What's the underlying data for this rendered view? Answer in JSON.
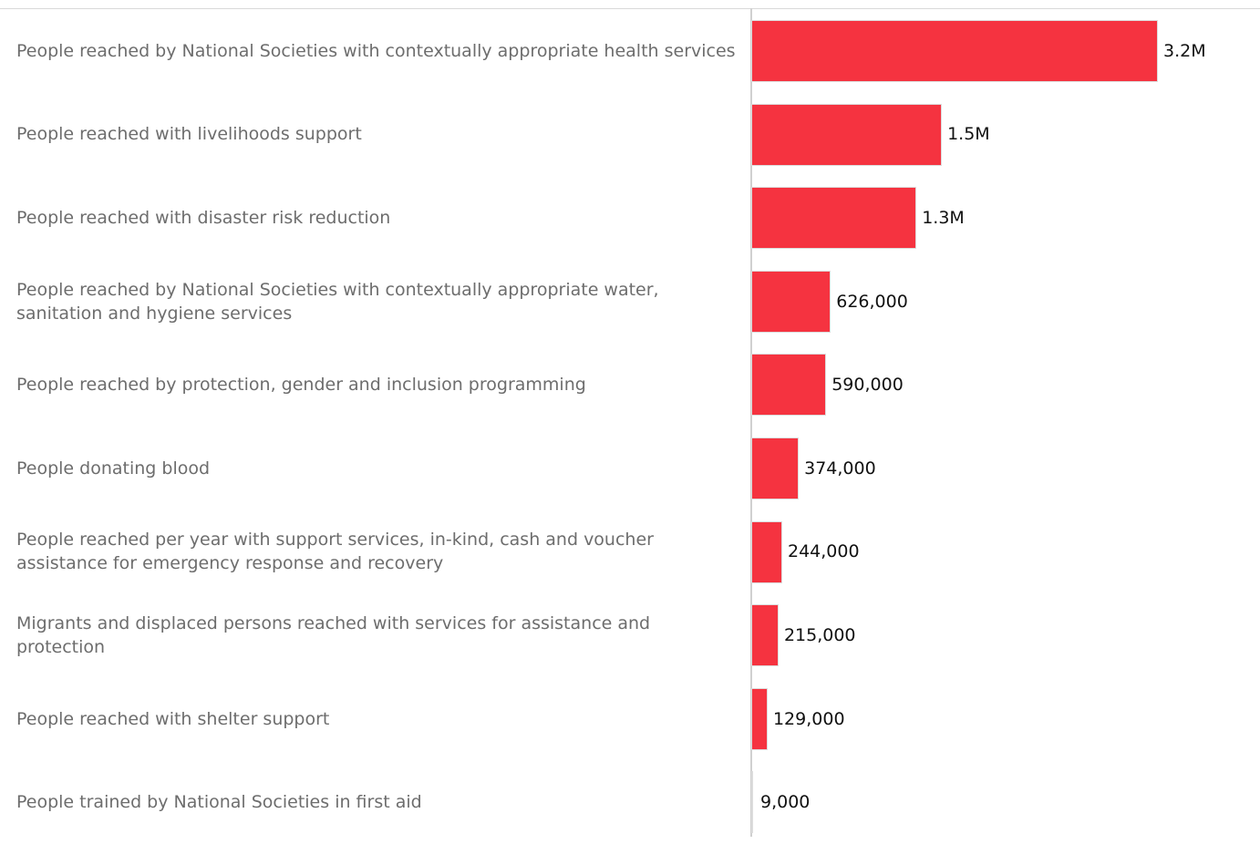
{
  "chart_data": {
    "type": "bar",
    "orientation": "horizontal",
    "categories": [
      "People reached by National Societies with contextually appropriate health services",
      "People reached with livelihoods support",
      "People reached with disaster risk reduction",
      "People reached by National Societies with contextually appropriate water, sanitation and hygiene services",
      "People reached by protection, gender and inclusion programming",
      "People donating blood",
      "People reached per year with support services, in-kind, cash and voucher assistance for emergency response and recovery",
      "Migrants and displaced persons reached with services for assistance and protection",
      "People reached with shelter support",
      "People trained by National Societies in first aid"
    ],
    "values": [
      3200000,
      1500000,
      1300000,
      626000,
      590000,
      374000,
      244000,
      215000,
      129000,
      9000
    ],
    "value_labels": [
      "3.2M",
      "1.5M",
      "1.3M",
      "626,000",
      "590,000",
      "374,000",
      "244,000",
      "215,000",
      "129,000",
      "9,000"
    ],
    "xlim": [
      0,
      3200000
    ],
    "grid": false,
    "legend": "none",
    "bar_color": "#f53340",
    "label_color": "#6d6d6d",
    "value_color": "#111111"
  }
}
